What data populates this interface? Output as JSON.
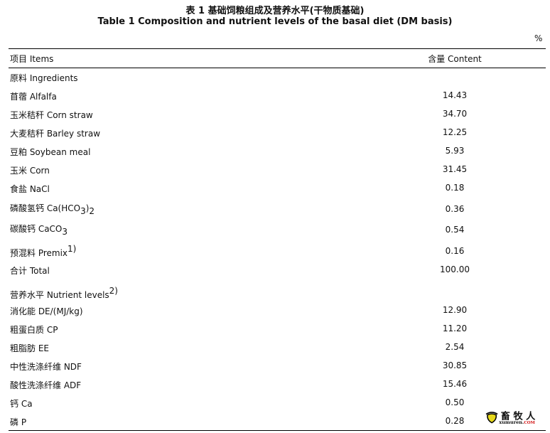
{
  "title_cn": "表 1 基础饲粮组成及营养水平(干物质基础)",
  "title_en": "Table 1 Composition and nutrient levels of the basal diet (DM basis)",
  "unit": "%",
  "header": {
    "items": "项目 Items",
    "content": "含量 Content"
  },
  "rows": [
    {
      "label": "原料 Ingredients",
      "value": ""
    },
    {
      "label": "苜蓿 Alfalfa",
      "value": "14.43"
    },
    {
      "label": "玉米秸秆 Corn straw",
      "value": "34.70"
    },
    {
      "label": "大麦秸秆  Barley straw",
      "value": "12.25"
    },
    {
      "label": "豆粕 Soybean meal",
      "value": "5.93"
    },
    {
      "label": "玉米 Corn",
      "value": "31.45"
    },
    {
      "label": "食盐 NaCl",
      "value": "0.18"
    },
    {
      "label": "磷酸氢钙 Ca(HCO",
      "sub": "3",
      "tail": ")",
      "sub2": "2",
      "value": "0.36"
    },
    {
      "label": "碳酸钙 CaCO",
      "sub": "3",
      "value": "0.54"
    },
    {
      "label": "预混料 Premix",
      "sup": "1)",
      "value": "0.16"
    },
    {
      "label": "合计 Total",
      "value": "100.00"
    },
    {
      "label": "营养水平 Nutrient levels",
      "sup": "2)",
      "value": ""
    },
    {
      "label": "消化能 DE/(MJ/kg)",
      "value": "12.90"
    },
    {
      "label": "粗蛋白质 CP",
      "value": "11.20"
    },
    {
      "label": "粗脂肪 EE",
      "value": "2.54"
    },
    {
      "label": "中性洗涤纤维 NDF",
      "value": "30.85"
    },
    {
      "label": "酸性洗涤纤维 ADF",
      "value": "15.46"
    },
    {
      "label": "钙 Ca",
      "value": "0.50"
    },
    {
      "label": "磷 P",
      "value": "0.28"
    }
  ],
  "watermark": {
    "text_cn": "畜牧人",
    "text_en": "xumuren.COM"
  }
}
